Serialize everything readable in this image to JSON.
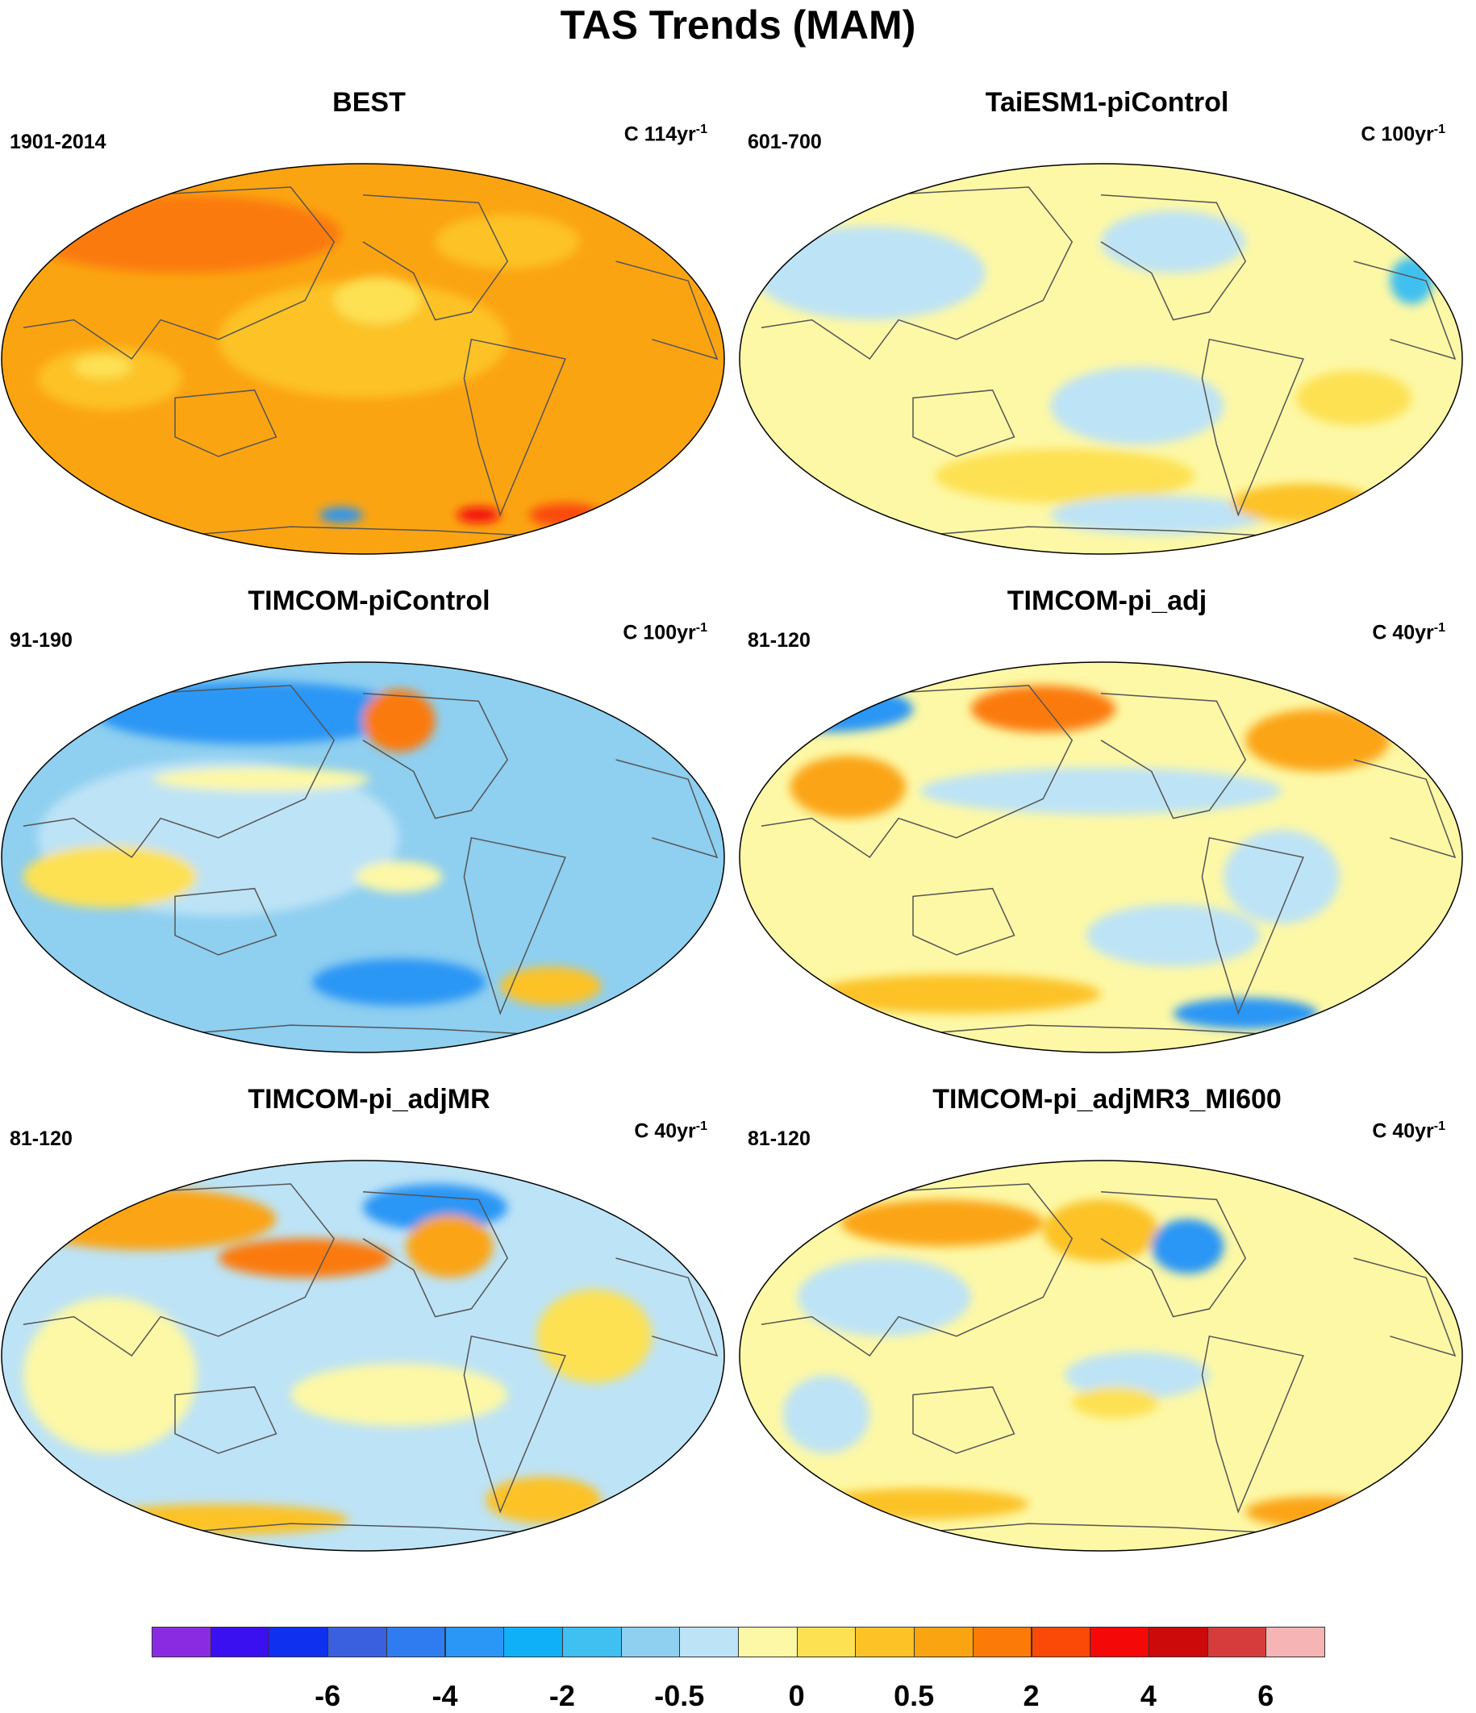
{
  "figure": {
    "title": "TAS Trends (MAM)"
  },
  "panels": [
    {
      "title": "BEST",
      "period": "1901-2014",
      "units_prefix": "C 114yr",
      "units_exp": "-1",
      "pattern": "warm"
    },
    {
      "title": "TaiESM1-piControl",
      "period": "601-700",
      "units_prefix": "C 100yr",
      "units_exp": "-1",
      "pattern": "neutral"
    },
    {
      "title": "TIMCOM-piControl",
      "period": "91-190",
      "units_prefix": "C 100yr",
      "units_exp": "-1",
      "pattern": "cool"
    },
    {
      "title": "TIMCOM-pi_adj",
      "period": "81-120",
      "units_prefix": "C 40yr",
      "units_exp": "-1",
      "pattern": "mixed"
    },
    {
      "title": "TIMCOM-pi_adjMR",
      "period": "81-120",
      "units_prefix": "C 40yr",
      "units_exp": "-1",
      "pattern": "mixed2"
    },
    {
      "title": "TIMCOM-pi_adjMR3_MI600",
      "period": "81-120",
      "units_prefix": "C 40yr",
      "units_exp": "-1",
      "pattern": "neutral2"
    }
  ],
  "colorbar": {
    "colors": [
      "#8a2be2",
      "#3a10f0",
      "#1030f0",
      "#3a60e0",
      "#2f7cf0",
      "#2a96f5",
      "#10b0f8",
      "#40c0f0",
      "#8fcff0",
      "#bde3f6",
      "#fdf8a6",
      "#fde152",
      "#fcc226",
      "#fba412",
      "#fb7a08",
      "#fb4a08",
      "#f40808",
      "#cc0a0a",
      "#d63c3c",
      "#f7b4b4"
    ],
    "labels": [
      "-6",
      "-4",
      "-2",
      "-0.5",
      "0",
      "0.5",
      "2",
      "4",
      "6"
    ]
  }
}
